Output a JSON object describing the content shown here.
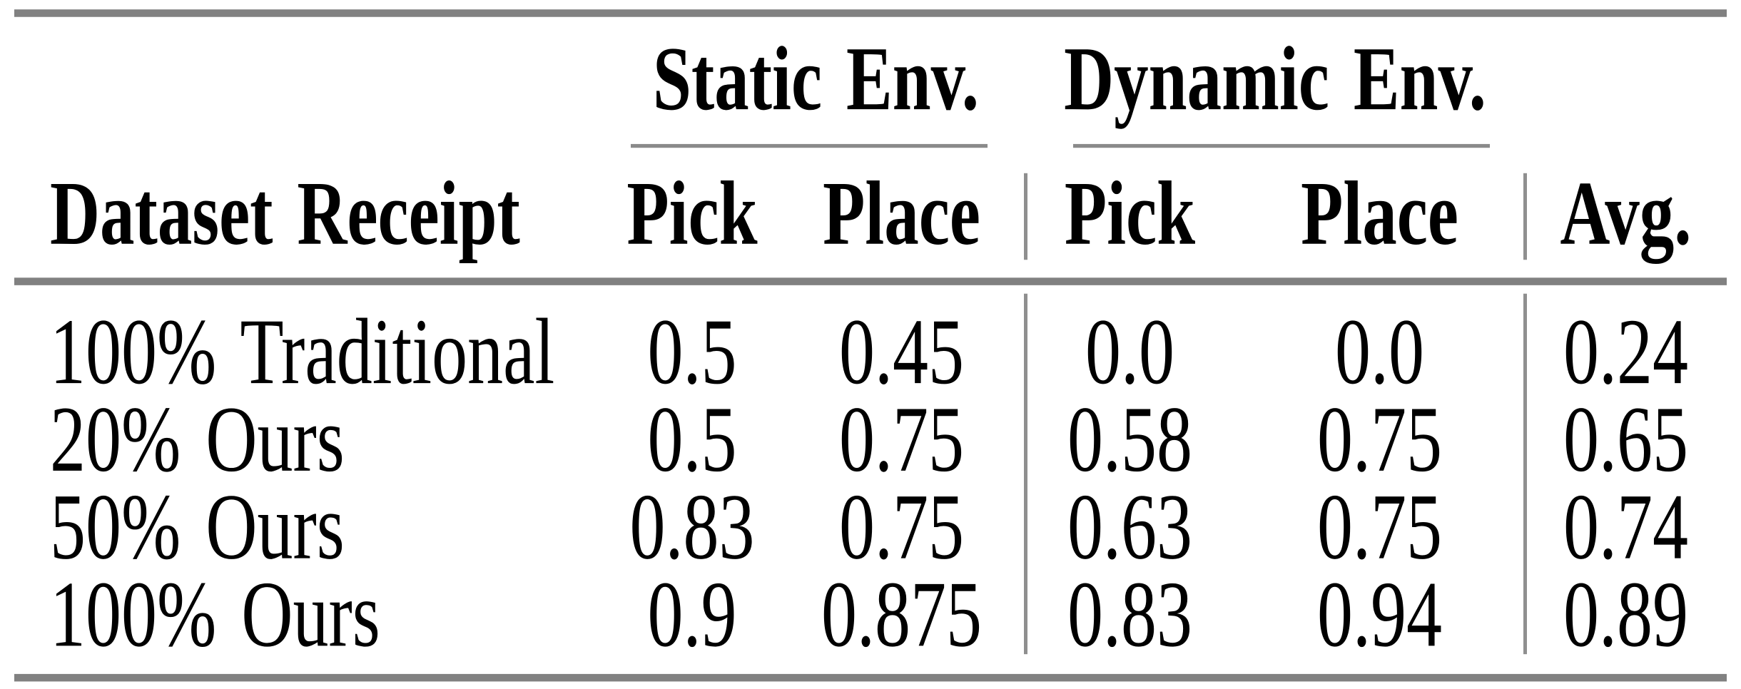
{
  "table": {
    "row_header": "Dataset Receipt",
    "groups": [
      {
        "label": "Static Env.",
        "columns": [
          "Pick",
          "Place"
        ]
      },
      {
        "label": "Dynamic Env.",
        "columns": [
          "Pick",
          "Place"
        ]
      }
    ],
    "avg_header": "Avg.",
    "rows": [
      {
        "label": "100% Traditional",
        "values": [
          "0.5",
          "0.45",
          "0.0",
          "0.0",
          "0.24"
        ]
      },
      {
        "label": "20% Ours",
        "values": [
          "0.5",
          "0.75",
          "0.58",
          "0.75",
          "0.65"
        ]
      },
      {
        "label": "50% Ours",
        "values": [
          "0.83",
          "0.75",
          "0.63",
          "0.75",
          "0.74"
        ]
      },
      {
        "label": "100% Ours",
        "values": [
          "0.9",
          "0.875",
          "0.83",
          "0.94",
          "0.89"
        ]
      }
    ]
  },
  "colors": {
    "text": "#000000",
    "background": "#ffffff",
    "rule_heavy": "#818181",
    "rule_light": "#8a8a8a",
    "vertical_divider": "#8f8f8f"
  },
  "chart_data": {
    "type": "table",
    "columns": [
      "Dataset Receipt",
      "Static Env. Pick",
      "Static Env. Place",
      "Dynamic Env. Pick",
      "Dynamic Env. Place",
      "Avg."
    ],
    "rows": [
      [
        "100% Traditional",
        0.5,
        0.45,
        0.0,
        0.0,
        0.24
      ],
      [
        "20% Ours",
        0.5,
        0.75,
        0.58,
        0.75,
        0.65
      ],
      [
        "50% Ours",
        0.83,
        0.75,
        0.63,
        0.75,
        0.74
      ],
      [
        "100% Ours",
        0.9,
        0.875,
        0.83,
        0.94,
        0.89
      ]
    ]
  }
}
